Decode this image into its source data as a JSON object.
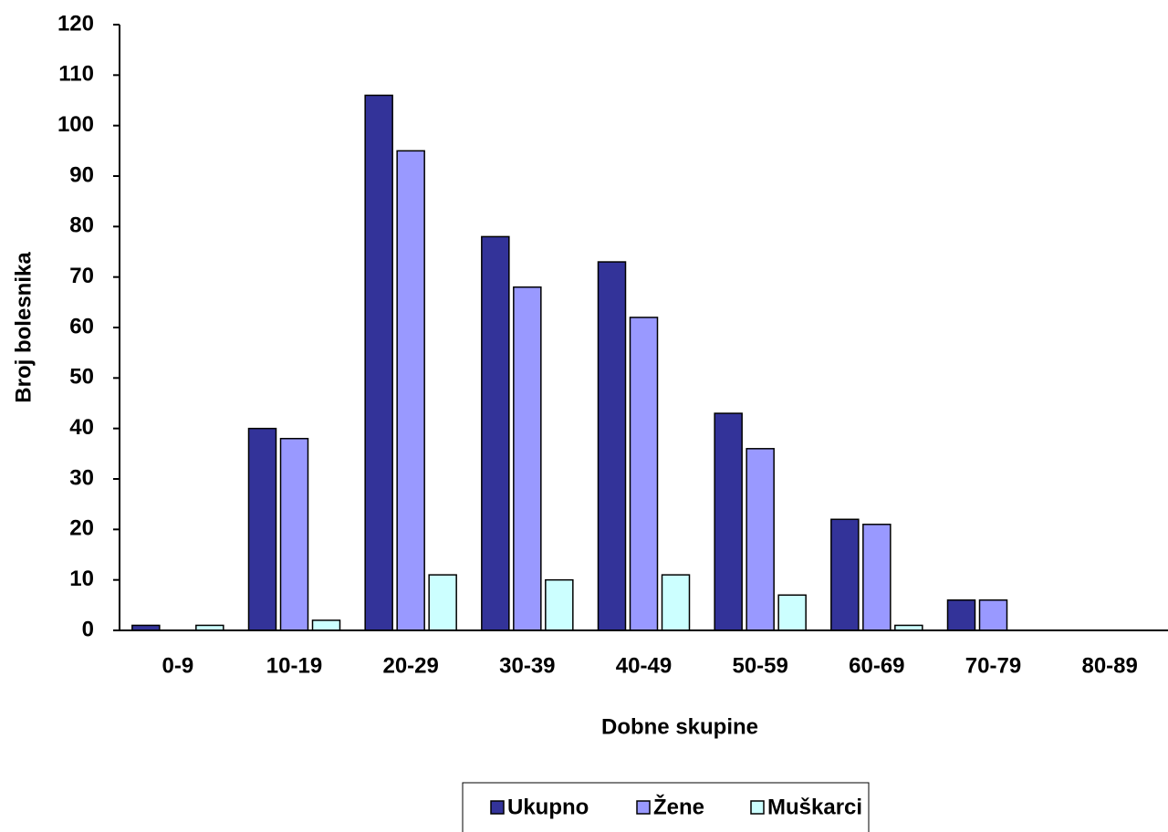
{
  "chart_data": {
    "type": "bar",
    "x_label": "Dobne skupine",
    "y_label": "Broj bolesnika",
    "categories": [
      "0-9",
      "10-19",
      "20-29",
      "30-39",
      "40-49",
      "50-59",
      "60-69",
      "70-79",
      "80-89"
    ],
    "series": [
      {
        "name": "Ukupno",
        "color": "#333399",
        "values": [
          1,
          40,
          106,
          78,
          73,
          43,
          22,
          6,
          0
        ]
      },
      {
        "name": "Žene",
        "color": "#9999ff",
        "values": [
          0,
          38,
          95,
          68,
          62,
          36,
          21,
          6,
          0
        ]
      },
      {
        "name": "Muškarci",
        "color": "#ccffff",
        "values": [
          1,
          2,
          11,
          10,
          11,
          7,
          1,
          0,
          0
        ]
      }
    ],
    "ylim": [
      0,
      120
    ],
    "yticks": [
      0,
      10,
      20,
      30,
      40,
      50,
      60,
      70,
      80,
      90,
      100,
      110,
      120
    ],
    "legend": "bottom"
  }
}
